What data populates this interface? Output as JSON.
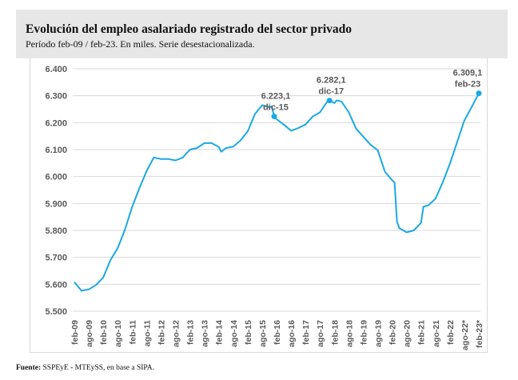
{
  "header": {
    "title": "Evolución del empleo asalariado registrado del sector privado",
    "subtitle": "Período feb-09 / feb-23. En miles. Serie desestacionalizada."
  },
  "source": {
    "label": "Fuente:",
    "text": " SSPEyE - MTEySS, en base a SIPA."
  },
  "chart_data": {
    "type": "line",
    "title": "Evolución del empleo asalariado registrado del sector privado",
    "subtitle": "Período feb-09 / feb-23. En miles. Serie desestacionalizada.",
    "xlabel": "",
    "ylabel": "",
    "ylim": [
      5500,
      6400
    ],
    "yticks": [
      "5.500",
      "5.600",
      "5.700",
      "5.800",
      "5.900",
      "6.000",
      "6.100",
      "6.200",
      "6.300",
      "6.400"
    ],
    "ytick_values": [
      5500,
      5600,
      5700,
      5800,
      5900,
      6000,
      6100,
      6200,
      6300,
      6400
    ],
    "xtick_labels": [
      "feb-09",
      "ago-09",
      "feb-10",
      "ago-10",
      "feb-11",
      "ago-11",
      "feb-12",
      "ago-12",
      "feb-13",
      "ago-13",
      "feb-14",
      "ago-14",
      "feb-15",
      "ago-15",
      "feb-16",
      "ago-16",
      "feb-17",
      "ago-17",
      "feb-18",
      "ago-18",
      "feb-19",
      "ago-19",
      "feb-20",
      "ago-20",
      "feb-21",
      "ago-21",
      "feb-22",
      "ago-22*",
      "feb-23*"
    ],
    "x_unit": "months since feb-09",
    "grid": true,
    "color": "#1aa8e6",
    "series": [
      {
        "name": "Empleo asalariado registrado privado (miles)",
        "x": [
          0,
          3,
          6,
          9,
          12,
          15,
          18,
          21,
          24,
          27,
          30,
          33,
          36,
          39,
          42,
          45,
          48,
          51,
          54,
          57,
          60,
          61,
          63,
          66,
          69,
          72,
          75,
          78,
          81,
          82,
          83,
          84,
          87,
          90,
          93,
          96,
          99,
          102,
          105,
          106,
          108,
          109,
          111,
          114,
          117,
          120,
          123,
          126,
          129,
          132,
          133,
          134,
          135,
          138,
          141,
          144,
          145,
          147,
          150,
          153,
          156,
          159,
          162,
          165,
          168
        ],
        "values": [
          5608,
          5576,
          5581,
          5597,
          5625,
          5690,
          5734,
          5803,
          5887,
          5956,
          6020,
          6071,
          6065,
          6065,
          6060,
          6070,
          6100,
          6106,
          6124,
          6124,
          6110,
          6092,
          6106,
          6111,
          6134,
          6168,
          6232,
          6265,
          6257,
          6260,
          6223.1,
          6213,
          6193,
          6170,
          6180,
          6193,
          6223,
          6238,
          6278,
          6282.1,
          6273,
          6283,
          6278,
          6238,
          6178,
          6148,
          6118,
          6098,
          6018,
          5986,
          5978,
          5833,
          5808,
          5793,
          5800,
          5828,
          5888,
          5893,
          5918,
          5978,
          6048,
          6128,
          6208,
          6258,
          6309.1
        ]
      }
    ],
    "annotations": [
      {
        "x": 83,
        "value": 6223.1,
        "value_label": "6.223,1",
        "date_label": "dic-15"
      },
      {
        "x": 106,
        "value": 6282.1,
        "value_label": "6.282,1",
        "date_label": "dic-17"
      },
      {
        "x": 168,
        "value": 6309.1,
        "value_label": "6.309,1",
        "date_label": "feb-23"
      }
    ]
  }
}
